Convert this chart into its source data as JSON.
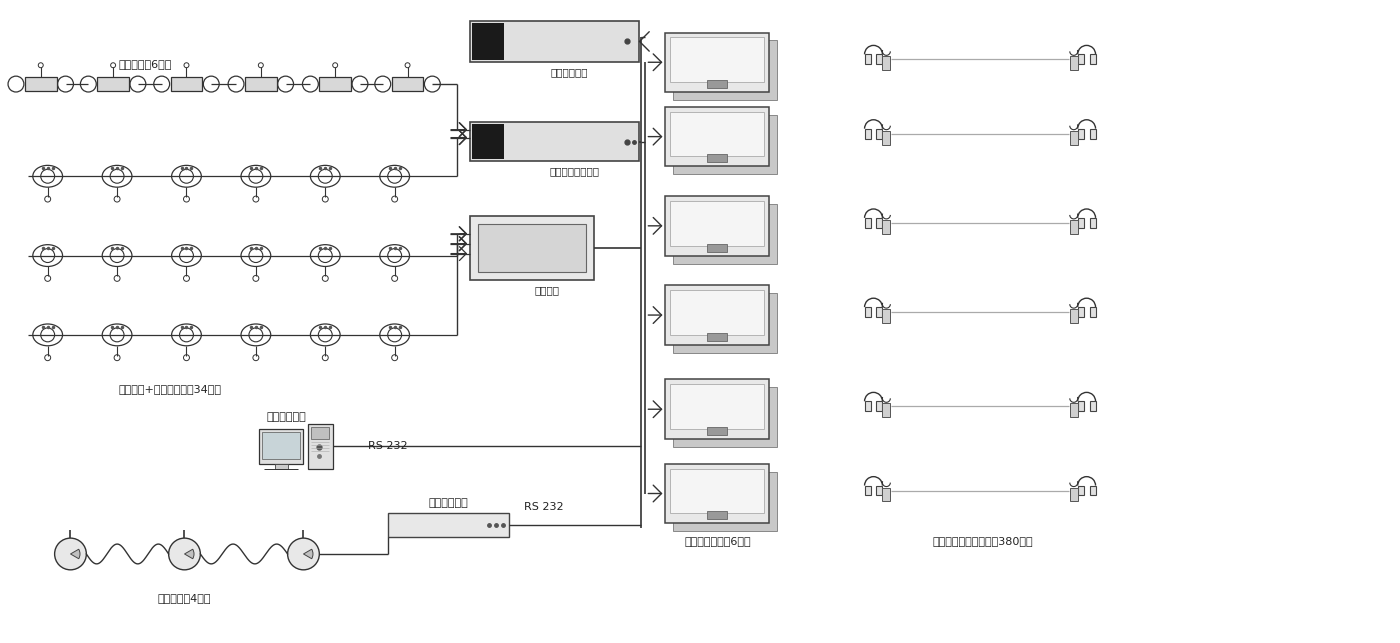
{
  "bg_color": "#ffffff",
  "lc": "#333333",
  "labels": {
    "translator": "译员台（八6只）",
    "delegate": "代表单元+主席单元（全34只）",
    "camera": "摄像机（八4只）",
    "ir_transmitter": "红外发射主机",
    "digital_host": "数字会议系统主机",
    "capacitor": "增容电容",
    "vote_pc": "表决管理电脑",
    "central_ctrl": "集中控制主机",
    "ir_panel": "红外辐射板（八6台）",
    "ir_receiver": "红外接收机含耳机（八380套）",
    "rs232": "RS 232"
  }
}
